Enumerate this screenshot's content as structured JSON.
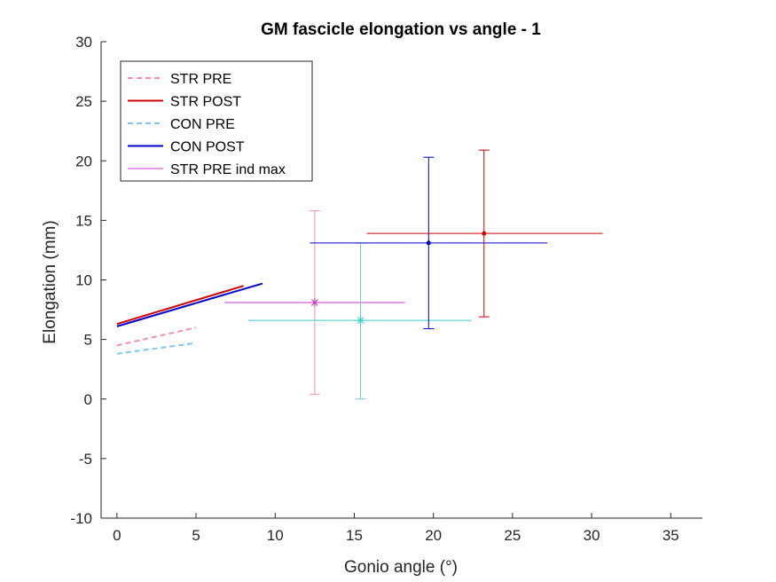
{
  "chart_data": {
    "type": "line",
    "title": "GM fascicle elongation vs angle - 1",
    "xlabel": "Gonio angle (°)",
    "ylabel": "Elongation (mm)",
    "xlim": [
      -1,
      37
    ],
    "ylim": [
      -10,
      30
    ],
    "xticks": [
      0,
      5,
      10,
      15,
      20,
      25,
      30,
      35
    ],
    "yticks": [
      -10,
      -5,
      0,
      5,
      10,
      15,
      20,
      25,
      30
    ],
    "xtick_labels": [
      "0",
      "5",
      "10",
      "15",
      "20",
      "25",
      "30",
      "35"
    ],
    "ytick_labels": [
      "-10",
      "-5",
      "0",
      "5",
      "10",
      "15",
      "20",
      "25",
      "30"
    ],
    "grid": false,
    "legend_position": "top-left",
    "series": [
      {
        "name": "STR PRE",
        "color": "#f48fb1",
        "style": "dashed",
        "x": [
          0,
          5
        ],
        "y": [
          4.5,
          6.0
        ]
      },
      {
        "name": "STR POST",
        "color": "#d00000",
        "style": "solid",
        "x": [
          0,
          8
        ],
        "y": [
          6.3,
          9.5
        ]
      },
      {
        "name": "CON PRE",
        "color": "#7ec8f0",
        "style": "dashed",
        "x": [
          0,
          5
        ],
        "y": [
          3.8,
          4.7
        ]
      },
      {
        "name": "CON POST",
        "color": "#0000cc",
        "style": "solid",
        "x": [
          0,
          9.2
        ],
        "y": [
          6.1,
          9.7
        ]
      },
      {
        "name": "STR PRE ind max",
        "color": "#cc33cc",
        "style": "solid",
        "x": [
          6.8,
          18.2
        ],
        "y": [
          8.1,
          8.1
        ]
      }
    ],
    "error_points": [
      {
        "name": "STR PRE ind max",
        "color": "#cc33cc",
        "vcolor": "#f48fb1",
        "marker": "asterisk",
        "x": 12.5,
        "y": 8.1,
        "xerr": [
          6.8,
          18.2
        ],
        "yerr": [
          0.4,
          15.8
        ]
      },
      {
        "name": "CON PRE",
        "color": "#33cccc",
        "vcolor": "#66cccc",
        "marker": "asterisk",
        "x": 15.4,
        "y": 6.6,
        "xerr": [
          8.3,
          22.4
        ],
        "yerr": [
          0.0,
          13.1
        ]
      },
      {
        "name": "CON POST",
        "color": "#0000cc",
        "vcolor": "#0000cc",
        "marker": "dot",
        "x": 19.7,
        "y": 13.1,
        "xerr": [
          12.2,
          27.2
        ],
        "yerr": [
          5.9,
          20.3
        ]
      },
      {
        "name": "STR POST",
        "color": "#d00000",
        "vcolor": "#d00000",
        "marker": "dot",
        "x": 23.2,
        "y": 13.9,
        "xerr": [
          15.8,
          30.7
        ],
        "yerr": [
          6.9,
          20.9
        ]
      }
    ]
  }
}
